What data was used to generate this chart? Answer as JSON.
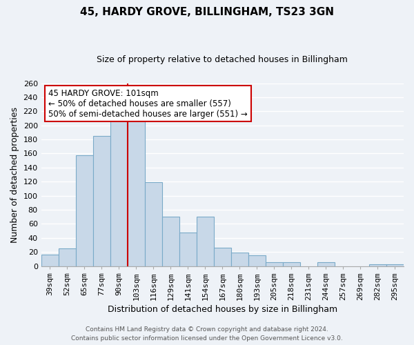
{
  "title": "45, HARDY GROVE, BILLINGHAM, TS23 3GN",
  "subtitle": "Size of property relative to detached houses in Billingham",
  "xlabel": "Distribution of detached houses by size in Billingham",
  "ylabel": "Number of detached properties",
  "bar_color": "#c8d8e8",
  "bar_edge_color": "#7aaac8",
  "categories": [
    "39sqm",
    "52sqm",
    "65sqm",
    "77sqm",
    "90sqm",
    "103sqm",
    "116sqm",
    "129sqm",
    "141sqm",
    "154sqm",
    "167sqm",
    "180sqm",
    "193sqm",
    "205sqm",
    "218sqm",
    "231sqm",
    "244sqm",
    "257sqm",
    "269sqm",
    "282sqm",
    "295sqm"
  ],
  "values": [
    16,
    25,
    158,
    185,
    210,
    215,
    119,
    70,
    48,
    70,
    26,
    19,
    15,
    5,
    5,
    0,
    5,
    0,
    0,
    2,
    2
  ],
  "vline_x_idx": 5,
  "vline_color": "#cc0000",
  "annotation_title": "45 HARDY GROVE: 101sqm",
  "annotation_line1": "← 50% of detached houses are smaller (557)",
  "annotation_line2": "50% of semi-detached houses are larger (551) →",
  "annotation_box_color": "#ffffff",
  "annotation_box_edge": "#cc0000",
  "ylim": [
    0,
    260
  ],
  "yticks": [
    0,
    20,
    40,
    60,
    80,
    100,
    120,
    140,
    160,
    180,
    200,
    220,
    240,
    260
  ],
  "footer1": "Contains HM Land Registry data © Crown copyright and database right 2024.",
  "footer2": "Contains public sector information licensed under the Open Government Licence v3.0.",
  "background_color": "#eef2f7",
  "grid_color": "#ffffff",
  "title_fontsize": 11,
  "subtitle_fontsize": 9,
  "ylabel_fontsize": 9,
  "xlabel_fontsize": 9,
  "tick_fontsize": 8,
  "footer_fontsize": 6.5
}
